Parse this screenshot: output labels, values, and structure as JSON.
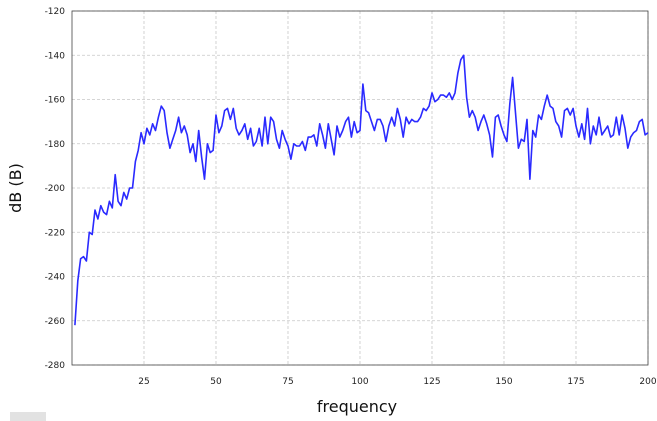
{
  "chart_data": {
    "type": "line",
    "title": "",
    "xlabel": "frequency",
    "ylabel": "dB (B)",
    "xlim": [
      0,
      200
    ],
    "ylim": [
      -280,
      -120
    ],
    "x_ticks": [
      25,
      50,
      75,
      100,
      125,
      150,
      175,
      200
    ],
    "y_ticks": [
      -120,
      -140,
      -160,
      -180,
      -200,
      -220,
      -240,
      -260,
      -280
    ],
    "grid": true,
    "legend": "none",
    "series": [
      {
        "color": "#2a2aff",
        "x": [
          1,
          2,
          3,
          4,
          5,
          6,
          7,
          8,
          9,
          10,
          11,
          12,
          13,
          14,
          15,
          16,
          17,
          18,
          19,
          20,
          21,
          22,
          23,
          24,
          25,
          26,
          27,
          28,
          29,
          30,
          31,
          32,
          33,
          34,
          35,
          36,
          37,
          38,
          39,
          40,
          41,
          42,
          43,
          44,
          45,
          46,
          47,
          48,
          49,
          50,
          51,
          52,
          53,
          54,
          55,
          56,
          57,
          58,
          59,
          60,
          61,
          62,
          63,
          64,
          65,
          66,
          67,
          68,
          69,
          70,
          71,
          72,
          73,
          74,
          75,
          76,
          77,
          78,
          79,
          80,
          81,
          82,
          83,
          84,
          85,
          86,
          87,
          88,
          89,
          90,
          91,
          92,
          93,
          94,
          95,
          96,
          97,
          98,
          99,
          100,
          101,
          102,
          103,
          104,
          105,
          106,
          107,
          108,
          109,
          110,
          111,
          112,
          113,
          114,
          115,
          116,
          117,
          118,
          119,
          120,
          121,
          122,
          123,
          124,
          125,
          126,
          127,
          128,
          129,
          130,
          131,
          132,
          133,
          134,
          135,
          136,
          137,
          138,
          139,
          140,
          141,
          142,
          143,
          144,
          145,
          146,
          147,
          148,
          149,
          150,
          151,
          152,
          153,
          154,
          155,
          156,
          157,
          158,
          159,
          160,
          161,
          162,
          163,
          164,
          165,
          166,
          167,
          168,
          169,
          170,
          171,
          172,
          173,
          174,
          175,
          176,
          177,
          178,
          179,
          180,
          181,
          182,
          183,
          184,
          185,
          186,
          187,
          188,
          189,
          190,
          191,
          192,
          193,
          194,
          195,
          196,
          197,
          198,
          199,
          200
        ],
        "y": [
          -262,
          -242,
          -232,
          -231,
          -233,
          -220,
          -221,
          -210,
          -214,
          -208,
          -211,
          -212,
          -206,
          -209,
          -194,
          -206,
          -208,
          -202,
          -205,
          -200,
          -200,
          -188,
          -183,
          -175,
          -180,
          -173,
          -176,
          -171,
          -174,
          -168,
          -163,
          -165,
          -175,
          -182,
          -178,
          -174,
          -168,
          -175,
          -172,
          -176,
          -184,
          -180,
          -188,
          -174,
          -186,
          -196,
          -180,
          -184,
          -183,
          -167,
          -175,
          -172,
          -165,
          -164,
          -169,
          -164,
          -173,
          -176,
          -174,
          -171,
          -178,
          -173,
          -181,
          -179,
          -173,
          -181,
          -168,
          -180,
          -168,
          -170,
          -178,
          -182,
          -174,
          -178,
          -181,
          -187,
          -180,
          -181,
          -181,
          -179,
          -183,
          -177,
          -177,
          -176,
          -181,
          -171,
          -176,
          -182,
          -171,
          -178,
          -185,
          -172,
          -177,
          -174,
          -170,
          -168,
          -177,
          -170,
          -175,
          -174,
          -153,
          -165,
          -166,
          -170,
          -174,
          -169,
          -169,
          -172,
          -179,
          -172,
          -168,
          -172,
          -164,
          -169,
          -177,
          -168,
          -171,
          -169,
          -170,
          -170,
          -168,
          -164,
          -165,
          -163,
          -157,
          -161,
          -160,
          -158,
          -158,
          -159,
          -157,
          -160,
          -157,
          -148,
          -142,
          -140,
          -159,
          -168,
          -165,
          -168,
          -174,
          -170,
          -167,
          -171,
          -176,
          -186,
          -168,
          -167,
          -172,
          -176,
          -179,
          -162,
          -150,
          -166,
          -182,
          -178,
          -179,
          -169,
          -196,
          -174,
          -177,
          -167,
          -169,
          -163,
          -158,
          -163,
          -164,
          -170,
          -172,
          -177,
          -165,
          -164,
          -167,
          -164,
          -172,
          -177,
          -171,
          -178,
          -164,
          -180,
          -172,
          -176,
          -168,
          -176,
          -174,
          -172,
          -177,
          -176,
          -168,
          -176,
          -167,
          -173,
          -182,
          -177,
          -175,
          -174,
          -170,
          -169,
          -176,
          -175
        ]
      }
    ]
  }
}
